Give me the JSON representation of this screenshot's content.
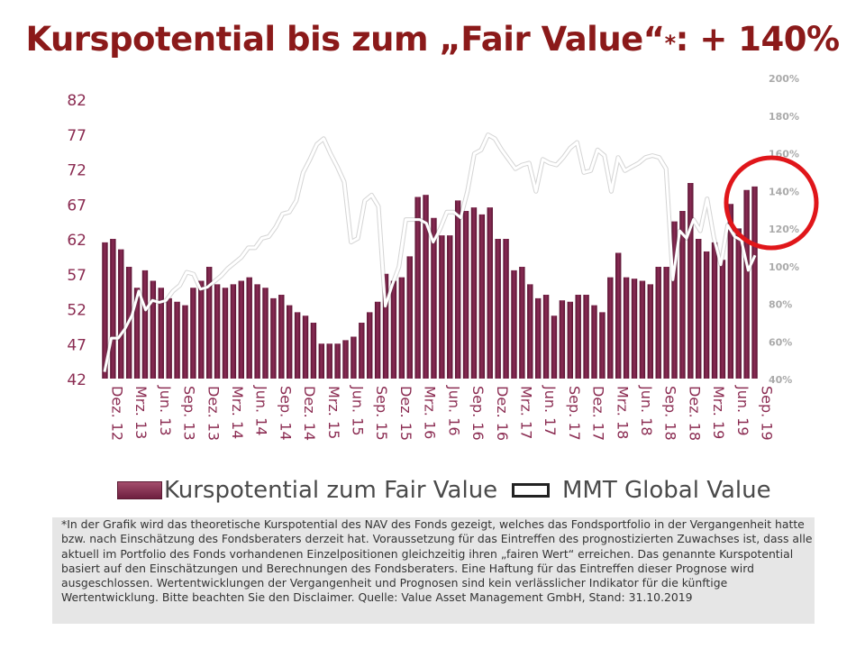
{
  "title": {
    "main": "Kurspotential bis zum „Fair Value“",
    "star": "*",
    "suffix": ": + 140%"
  },
  "colors": {
    "title": "#8b1a1a",
    "bars": "#7a2247",
    "line": "#ffffff",
    "axis_left": "#8b2c52",
    "axis_right": "#aaaaaa",
    "highlight_circle": "#e0161a"
  },
  "legend": {
    "bars_label": "Kurspotential zum Fair Value",
    "line_label": "MMT Global Value"
  },
  "footnote": "*In der Grafik wird das theoretische Kurspotential des NAV des Fonds gezeigt, welches das Fondsportfolio in der Vergangenheit hatte bzw. nach Einschätzung des Fondsberaters derzeit hat. Voraussetzung für das Eintreffen des prognostizierten Zuwachses ist, dass alle aktuell im Portfolio des Fonds vorhandenen Einzelpositionen gleichzeitig ihren „fairen Wert“ erreichen. Das genannte Kurspotential basiert auf den Einschätzungen und Berechnungen des Fondsberaters. Eine Haftung für das Eintreffen dieser Prognose wird ausgeschlossen. Wertentwicklungen der Vergangenheit und Prognosen sind kein verlässlicher Indikator für die künftige Wertentwicklung. Bitte beachten Sie den Disclaimer. Quelle: Value Asset Management GmbH, Stand: 31.10.2019",
  "chart_data": {
    "type": "bar",
    "x_tick_labels": [
      "Dez. 12",
      "Mrz. 13",
      "Jun. 13",
      "Sep. 13",
      "Dez. 13",
      "Mrz. 14",
      "Jun. 14",
      "Sep. 14",
      "Dez. 14",
      "Mrz. 15",
      "Jun. 15",
      "Sep. 15",
      "Dez. 15",
      "Mrz. 16",
      "Jun. 16",
      "Sep. 16",
      "Dez. 16",
      "Mrz. 17",
      "Jun. 17",
      "Sep. 17",
      "Dez. 17",
      "Mrz. 18",
      "Jun. 18",
      "Sep. 18",
      "Dez. 18",
      "Mrz. 19",
      "Jun. 19",
      "Sep. 19"
    ],
    "y_left": {
      "min": 42,
      "max": 82,
      "ticks": [
        "42",
        "47",
        "52",
        "57",
        "62",
        "67",
        "72",
        "77",
        "82"
      ]
    },
    "y_right": {
      "min": 40,
      "max": 200,
      "ticks": [
        "40%",
        "60%",
        "80%",
        "100%",
        "120%",
        "140%",
        "160%",
        "180%",
        "200%"
      ]
    },
    "series": [
      {
        "name": "Kurspotential zum Fair Value",
        "type": "bar",
        "axis": "left",
        "values": [
          61.5,
          62,
          60.5,
          58,
          55,
          57.5,
          56,
          55,
          53.5,
          53,
          52.5,
          55,
          56,
          58,
          55.5,
          55,
          55.5,
          56,
          56.5,
          55.5,
          55,
          53.5,
          54,
          52.5,
          51.5,
          51,
          50,
          47,
          47,
          47,
          47.5,
          48,
          50,
          51.5,
          53,
          57,
          56,
          56.5,
          59.5,
          68,
          68.3,
          65,
          62.5,
          62.5,
          67.5,
          66,
          66.5,
          65.5,
          66.5,
          62,
          62,
          57.5,
          58,
          55.5,
          53.5,
          54,
          51,
          53.2,
          53,
          54,
          54,
          52.5,
          51.5,
          56.5,
          60,
          56.5,
          56.3,
          56,
          55.5,
          58,
          58,
          64.5,
          66,
          70,
          62,
          60.2,
          61.5,
          59,
          67,
          63.5,
          69,
          69.5
        ]
      },
      {
        "name": "MMT Global Value",
        "type": "line",
        "axis": "right",
        "values": [
          44,
          62,
          62,
          67,
          74,
          87,
          77,
          82,
          81,
          82,
          87,
          90,
          97,
          96,
          88,
          89,
          92,
          95,
          99,
          102,
          105,
          110,
          110,
          115,
          116,
          121,
          128,
          129,
          135,
          150,
          157,
          165,
          168,
          160,
          153,
          145,
          113,
          115,
          135,
          138,
          132,
          79,
          90,
          100,
          125,
          125,
          125,
          123,
          113,
          120,
          129,
          129,
          126,
          140,
          160,
          162,
          170,
          168,
          162,
          157,
          152,
          154,
          155,
          140,
          157,
          155,
          154,
          158,
          163,
          166,
          150,
          151,
          162,
          159,
          140,
          158,
          151,
          153,
          155,
          158,
          159,
          158,
          152,
          93,
          119,
          115,
          125,
          119,
          136,
          115,
          101,
          122,
          116,
          114,
          98,
          106
        ]
      }
    ]
  }
}
